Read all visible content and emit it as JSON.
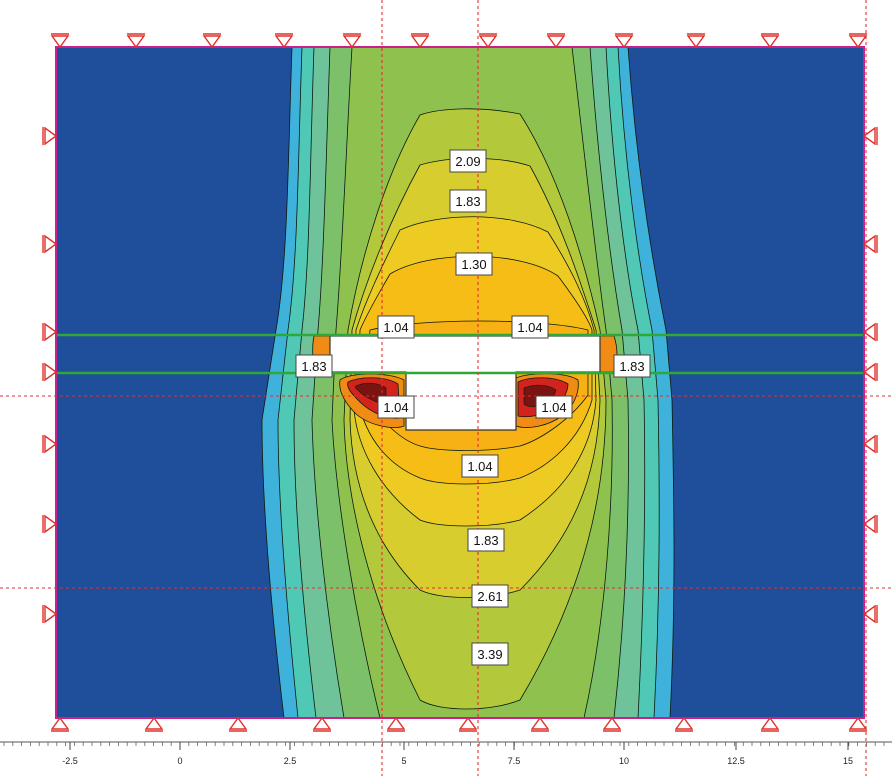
{
  "title": "",
  "colors": {
    "background": "#ffffff",
    "far_field": "#1f4f9a",
    "boundary": "#cc1f8a",
    "support": "#e0302a",
    "grid_line": "#e03030",
    "excavation": "#ffffff",
    "strut": "#2ea836",
    "peak": "#d2231c",
    "orange": "#f08c16",
    "contour_line": "#0a1a10"
  },
  "contour_levels": [
    "2.09",
    "1.83",
    "1.30",
    "1.04",
    "1.04",
    "1.83",
    "1.83",
    "1.04",
    "1.04",
    "1.04",
    "1.83",
    "2.61",
    "3.39"
  ],
  "x_axis": {
    "ticks": [
      "-2.5",
      "0",
      "2.5",
      "5",
      "7.5",
      "10",
      "12.5",
      "15"
    ]
  }
}
